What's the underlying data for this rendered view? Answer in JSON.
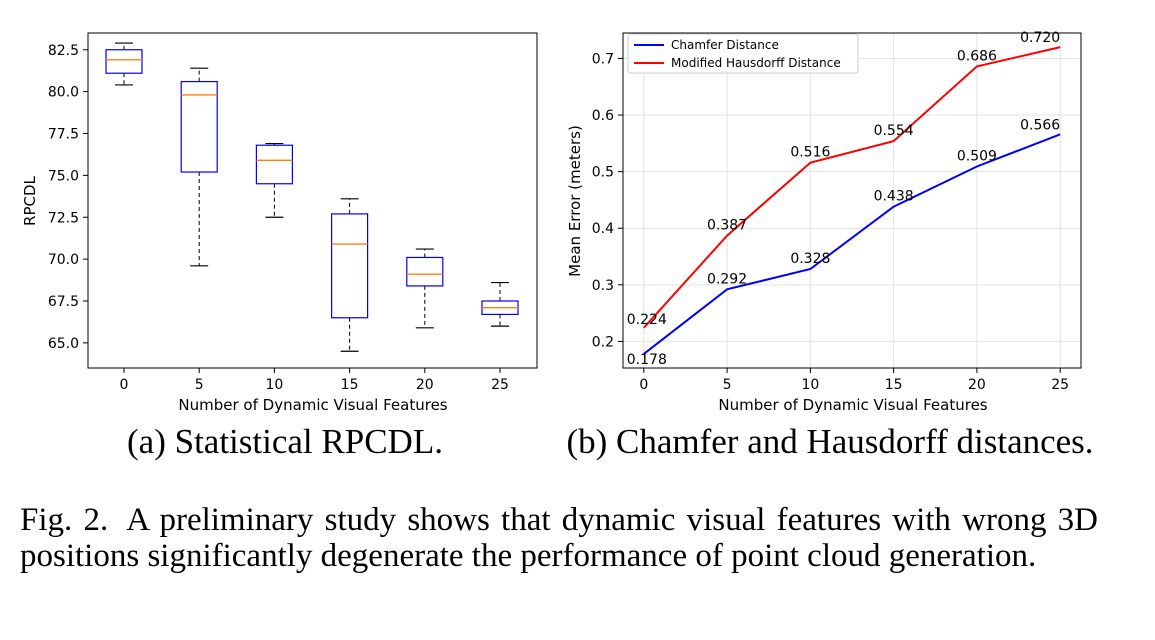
{
  "chart_data": [
    {
      "type": "box",
      "xlabel": "Number of Dynamic Visual Features",
      "ylabel": "RPCDL",
      "categories": [
        "0",
        "5",
        "10",
        "15",
        "20",
        "25"
      ],
      "x": [
        0,
        5,
        10,
        15,
        20,
        25
      ],
      "yticks": [
        "65.0",
        "67.5",
        "70.0",
        "72.5",
        "75.0",
        "77.5",
        "80.0",
        "82.5"
      ],
      "ytick_values": [
        65.0,
        67.5,
        70.0,
        72.5,
        75.0,
        77.5,
        80.0,
        82.5
      ],
      "ylim": [
        63.5,
        83.5
      ],
      "boxes": [
        {
          "x": 0,
          "whisker_low": 80.4,
          "q1": 81.1,
          "median": 81.9,
          "q3": 82.5,
          "whisker_high": 82.9
        },
        {
          "x": 5,
          "whisker_low": 69.6,
          "q1": 75.2,
          "median": 79.8,
          "q3": 80.6,
          "whisker_high": 81.4
        },
        {
          "x": 10,
          "whisker_low": 72.5,
          "q1": 74.5,
          "median": 75.9,
          "q3": 76.8,
          "whisker_high": 76.9
        },
        {
          "x": 15,
          "whisker_low": 64.5,
          "q1": 66.5,
          "median": 70.9,
          "q3": 72.7,
          "whisker_high": 73.6
        },
        {
          "x": 20,
          "whisker_low": 65.9,
          "q1": 68.4,
          "median": 69.1,
          "q3": 70.1,
          "whisker_high": 70.6
        },
        {
          "x": 25,
          "whisker_low": 66.0,
          "q1": 66.7,
          "median": 67.1,
          "q3": 67.5,
          "whisker_high": 68.6
        }
      ],
      "colors": {
        "box": "#0000ff",
        "median": "#ff7f0e",
        "whisker": "#000000"
      }
    },
    {
      "type": "line",
      "xlabel": "Number of Dynamic Visual Features",
      "ylabel": "Mean Error (meters)",
      "x": [
        0,
        5,
        10,
        15,
        20,
        25
      ],
      "xticks": [
        "0",
        "5",
        "10",
        "15",
        "20",
        "25"
      ],
      "xlim": [
        -1.25,
        26.25
      ],
      "yticks": [
        "0.2",
        "0.3",
        "0.4",
        "0.5",
        "0.6",
        "0.7"
      ],
      "ytick_values": [
        0.2,
        0.3,
        0.4,
        0.5,
        0.6,
        0.7
      ],
      "ylim": [
        0.153,
        0.745
      ],
      "grid": true,
      "legend_position": "top-left",
      "series": [
        {
          "name": "Chamfer Distance",
          "color": "#0000ff",
          "values": [
            0.178,
            0.292,
            0.328,
            0.438,
            0.509,
            0.566
          ],
          "labels": [
            "0.178",
            "0.292",
            "0.328",
            "0.438",
            "0.509",
            "0.566"
          ]
        },
        {
          "name": "Modified Hausdorff Distance",
          "color": "#ff0000",
          "values": [
            0.224,
            0.387,
            0.516,
            0.554,
            0.686,
            0.72
          ],
          "labels": [
            "0.224",
            "0.387",
            "0.516",
            "0.554",
            "0.686",
            "0.720"
          ]
        }
      ]
    }
  ],
  "subcaptions": {
    "a": "(a) Statistical RPCDL.",
    "b": "(b) Chamfer and Hausdorff distances."
  },
  "caption": {
    "label": "Fig. 2.",
    "text": "A preliminary study shows that dynamic visual features with wrong 3D positions significantly degenerate the performance of point cloud generation."
  }
}
